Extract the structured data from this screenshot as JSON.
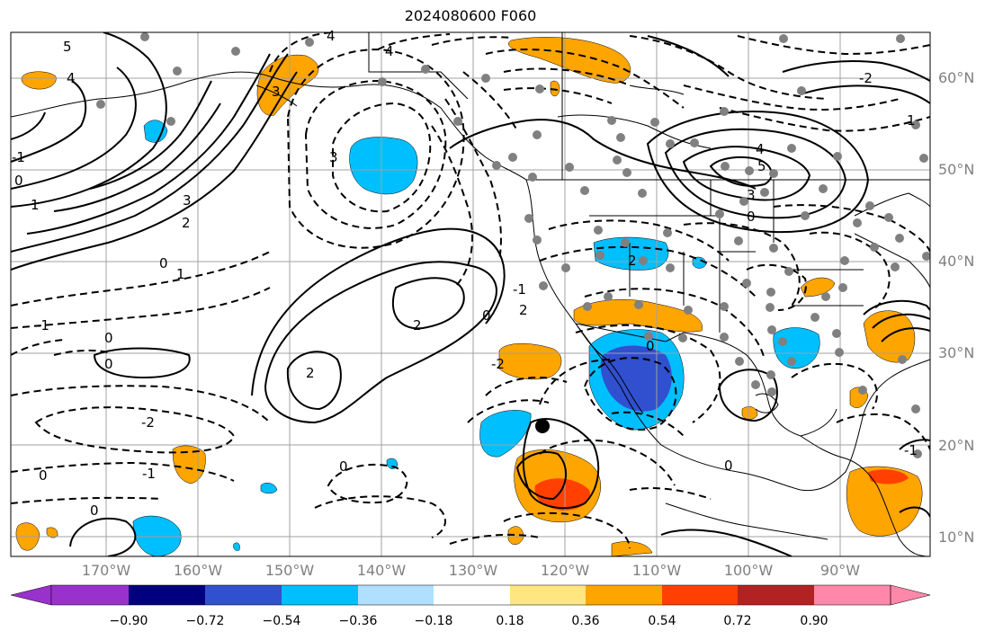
{
  "title": "2024080600 F060",
  "lat_labels": [
    "60°N",
    "50°N",
    "40°N",
    "30°N",
    "20°N",
    "10°N"
  ],
  "lon_labels": [
    "170°W",
    "160°W",
    "150°W",
    "140°W",
    "130°W",
    "120°W",
    "110°W",
    "100°W",
    "90°W"
  ],
  "colorbar": {
    "ticks": [
      "−0.90",
      "−0.72",
      "−0.54",
      "−0.36",
      "−0.18",
      "0.18",
      "0.36",
      "0.54",
      "0.72",
      "0.90"
    ],
    "colors": [
      "#9932cc",
      "#000080",
      "#3050d0",
      "#00bfff",
      "#b0e0ff",
      "#ffffff",
      "#ffe680",
      "#ffa500",
      "#ff4000",
      "#b22222",
      "#ff88aa"
    ]
  },
  "contour_labels": [
    "5",
    "4",
    "0",
    "1",
    "3",
    "2",
    "1",
    "0",
    "4",
    "3",
    "4",
    "3",
    "5",
    "0",
    "4",
    "3",
    "2",
    "0",
    "2",
    "-2",
    "-1",
    "-1",
    "0",
    "0",
    "0",
    "0",
    "-1",
    "1",
    "-2",
    "-1",
    "0",
    "-1",
    "2",
    "2",
    "-2",
    "0",
    "0"
  ],
  "colors": {
    "positive": "#ffa500",
    "strong_positive": "#ff4000",
    "negative": "#00bfff",
    "strong_negative": "#3050d0"
  }
}
